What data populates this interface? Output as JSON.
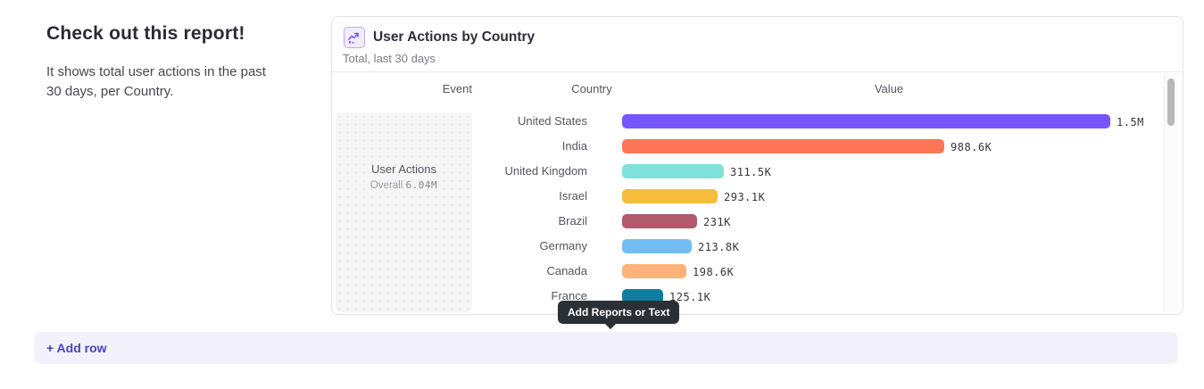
{
  "intro": {
    "title": "Check out this report!",
    "description": "It shows total user actions in the past 30 days, per Country."
  },
  "report_card": {
    "icon": "insights-chart-icon",
    "title": "User Actions by Country",
    "subtitle": "Total, last 30 days",
    "columns": {
      "event": "Event",
      "country": "Country",
      "value": "Value"
    },
    "event_cell": {
      "name": "User Actions",
      "overall_label": "Overall",
      "overall_value": "6.04M"
    }
  },
  "chart_data": {
    "type": "bar",
    "orientation": "horizontal",
    "title": "User Actions by Country",
    "subtitle": "Total, last 30 days",
    "categories": [
      "United States",
      "India",
      "United Kingdom",
      "Israel",
      "Brazil",
      "Germany",
      "Canada",
      "France"
    ],
    "values": [
      1500000,
      988600,
      311500,
      293100,
      231000,
      213800,
      198600,
      125100
    ],
    "value_labels": [
      "1.5M",
      "988.6K",
      "311.5K",
      "293.1K",
      "231K",
      "213.8K",
      "198.6K",
      "125.1K"
    ],
    "colors": [
      "#7856FF",
      "#FF7557",
      "#80E1D9",
      "#F8BC3B",
      "#B2596E",
      "#72BEF4",
      "#FFB27A",
      "#0D7EA0"
    ],
    "xlim": [
      0,
      1500000
    ],
    "legend": "none",
    "grid": "off"
  },
  "tooltip": {
    "label": "Add Reports or Text"
  },
  "add_row": {
    "label": "+ Add row"
  },
  "theme": {
    "accent": "#7856FF",
    "add_row_bg": "#f3f1fc",
    "tooltip_bg": "#2b2f36"
  }
}
